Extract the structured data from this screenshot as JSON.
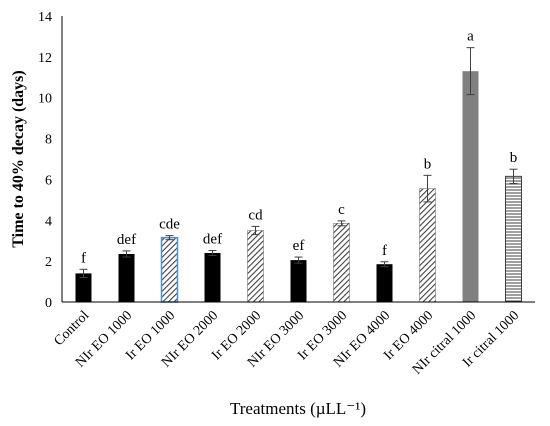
{
  "chart_data": {
    "type": "bar",
    "title": "",
    "xlabel": "Treatments (µLL⁻¹)",
    "ylabel": "Time to 40% decay (days)",
    "ylim": [
      0,
      14
    ],
    "yticks": [
      "0",
      "2",
      "4",
      "6",
      "8",
      "10",
      "12",
      "14"
    ],
    "grid": false,
    "categories": [
      "Control",
      "NIr EO 1000",
      "Ir EO 1000",
      "NIr EO 2000",
      "Ir EO 2000",
      "NIr EO 3000",
      "Ir EO 3000",
      "NIr EO 4000",
      "Ir EO 4000",
      "NIr citral 1000",
      "Ir citral 1000"
    ],
    "values": [
      1.4,
      2.35,
      3.15,
      2.4,
      3.5,
      2.05,
      3.85,
      1.85,
      5.55,
      11.3,
      6.15
    ],
    "errors": [
      0.2,
      0.15,
      0.1,
      0.12,
      0.2,
      0.15,
      0.12,
      0.12,
      0.65,
      1.15,
      0.35
    ],
    "significance": [
      "f",
      "def",
      "cde",
      "def",
      "cd",
      "ef",
      "c",
      "f",
      "b",
      "a",
      "b"
    ],
    "styles": [
      "solid-black",
      "solid-black",
      "hatched-blue-outline",
      "solid-black",
      "hatched",
      "solid-black",
      "hatched",
      "solid-black",
      "hatched",
      "solid-gray",
      "horizontal-lines"
    ],
    "colors": {
      "solid-black": "#000000",
      "solid-gray": "#808080",
      "hatch": "#404040",
      "blue-outline": "#4a90d9",
      "axis": "#000000"
    }
  }
}
